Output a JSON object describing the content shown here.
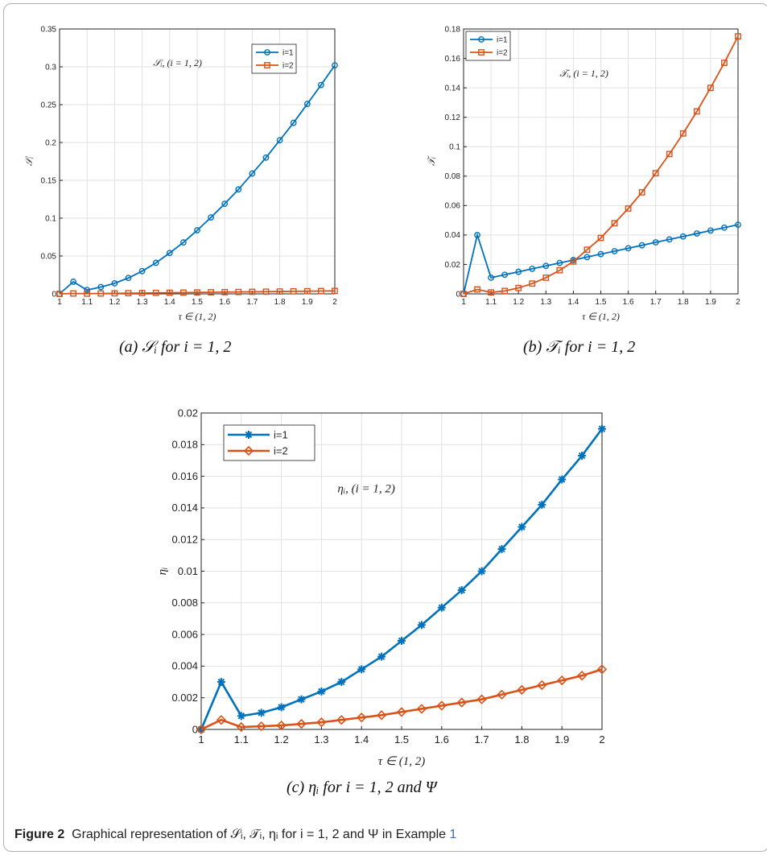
{
  "figure_caption": {
    "label": "Figure 2",
    "text": "Graphical representation of 𝒮ᵢ, 𝒯ᵢ, ηᵢ for i = 1, 2 and Ψ in Example",
    "ref": "1"
  },
  "chart_data": [
    {
      "type": "line",
      "caption": "(a) 𝒮ᵢ for i = 1, 2",
      "xlabel": "τ ∈ (1, 2)",
      "ylabel": "𝒮ᵢ",
      "annotation": "𝒮ᵢ, (i = 1, 2)",
      "legend_position": "top-right",
      "grid": true,
      "xlim": [
        1,
        2
      ],
      "ylim": [
        0,
        0.35
      ],
      "xticks": [
        "1",
        "1.1",
        "1.2",
        "1.3",
        "1.4",
        "1.5",
        "1.6",
        "1.7",
        "1.8",
        "1.9",
        "2"
      ],
      "yticks": [
        "0",
        "0.05",
        "0.1",
        "0.15",
        "0.2",
        "0.25",
        "0.3",
        "0.35"
      ],
      "x": [
        1,
        1.05,
        1.1,
        1.15,
        1.2,
        1.25,
        1.3,
        1.35,
        1.4,
        1.45,
        1.5,
        1.55,
        1.6,
        1.65,
        1.7,
        1.75,
        1.8,
        1.85,
        1.9,
        1.95,
        2
      ],
      "series": [
        {
          "name": "i=1",
          "color": "#0072bd",
          "marker": "circle",
          "values": [
            0,
            0.016,
            0.005,
            0.009,
            0.014,
            0.021,
            0.03,
            0.041,
            0.054,
            0.068,
            0.084,
            0.101,
            0.119,
            0.138,
            0.159,
            0.18,
            0.203,
            0.226,
            0.251,
            0.276,
            0.302
          ]
        },
        {
          "name": "i=2",
          "color": "#d95319",
          "marker": "square",
          "values": [
            0,
            0.0005,
            0.0003,
            0.0005,
            0.0007,
            0.0009,
            0.0011,
            0.0013,
            0.0015,
            0.0017,
            0.0019,
            0.0021,
            0.0023,
            0.0025,
            0.0027,
            0.0029,
            0.0031,
            0.0033,
            0.0035,
            0.0037,
            0.0039
          ]
        }
      ]
    },
    {
      "type": "line",
      "caption": "(b) 𝒯ᵢ for i = 1, 2",
      "xlabel": "τ ∈ (1, 2)",
      "ylabel": "𝒯ᵢ",
      "annotation": "𝒯ᵢ, (i = 1, 2)",
      "legend_position": "top-left",
      "grid": true,
      "xlim": [
        1,
        2
      ],
      "ylim": [
        0,
        0.18
      ],
      "xticks": [
        "1",
        "1.1",
        "1.2",
        "1.3",
        "1.4",
        "1.5",
        "1.6",
        "1.7",
        "1.8",
        "1.9",
        "2"
      ],
      "yticks": [
        "0",
        "0.02",
        "0.04",
        "0.06",
        "0.08",
        "0.1",
        "0.12",
        "0.14",
        "0.16",
        "0.18"
      ],
      "x": [
        1,
        1.05,
        1.1,
        1.15,
        1.2,
        1.25,
        1.3,
        1.35,
        1.4,
        1.45,
        1.5,
        1.55,
        1.6,
        1.65,
        1.7,
        1.75,
        1.8,
        1.85,
        1.9,
        1.95,
        2
      ],
      "series": [
        {
          "name": "i=1",
          "color": "#0072bd",
          "marker": "circle",
          "values": [
            0,
            0.04,
            0.011,
            0.013,
            0.015,
            0.017,
            0.019,
            0.021,
            0.023,
            0.025,
            0.027,
            0.029,
            0.031,
            0.033,
            0.035,
            0.037,
            0.039,
            0.041,
            0.043,
            0.045,
            0.047
          ]
        },
        {
          "name": "i=2",
          "color": "#d95319",
          "marker": "square",
          "values": [
            0,
            0.003,
            0.001,
            0.002,
            0.004,
            0.007,
            0.011,
            0.016,
            0.022,
            0.03,
            0.038,
            0.048,
            0.058,
            0.069,
            0.082,
            0.095,
            0.109,
            0.124,
            0.14,
            0.157,
            0.175
          ]
        }
      ]
    },
    {
      "type": "line",
      "caption": "(c) ηᵢ for i = 1, 2 and Ψ",
      "xlabel": "τ ∈ (1, 2)",
      "ylabel": "ηᵢ",
      "annotation": "ηᵢ, (i = 1, 2)",
      "legend_position": "top-left",
      "grid": true,
      "xlim": [
        1,
        2
      ],
      "ylim": [
        0,
        0.02
      ],
      "xticks": [
        "1",
        "1.1",
        "1.2",
        "1.3",
        "1.4",
        "1.5",
        "1.6",
        "1.7",
        "1.8",
        "1.9",
        "2"
      ],
      "yticks": [
        "0",
        "0.002",
        "0.004",
        "0.006",
        "0.008",
        "0.01",
        "0.012",
        "0.014",
        "0.016",
        "0.018",
        "0.02"
      ],
      "x": [
        1,
        1.05,
        1.1,
        1.15,
        1.2,
        1.25,
        1.3,
        1.35,
        1.4,
        1.45,
        1.5,
        1.55,
        1.6,
        1.65,
        1.7,
        1.75,
        1.8,
        1.85,
        1.9,
        1.95,
        2
      ],
      "series": [
        {
          "name": "i=1",
          "color": "#0072bd",
          "marker": "asterisk",
          "values": [
            0,
            0.003,
            0.00085,
            0.00105,
            0.0014,
            0.0019,
            0.0024,
            0.003,
            0.0038,
            0.0046,
            0.0056,
            0.0066,
            0.0077,
            0.0088,
            0.01,
            0.0114,
            0.0128,
            0.0142,
            0.0158,
            0.0173,
            0.019
          ]
        },
        {
          "name": "i=2",
          "color": "#d95319",
          "marker": "diamond",
          "values": [
            0,
            0.0006,
            0.00015,
            0.0002,
            0.00025,
            0.00035,
            0.00045,
            0.0006,
            0.00075,
            0.0009,
            0.0011,
            0.0013,
            0.0015,
            0.0017,
            0.0019,
            0.0022,
            0.0025,
            0.0028,
            0.0031,
            0.0034,
            0.0038
          ]
        }
      ]
    }
  ]
}
